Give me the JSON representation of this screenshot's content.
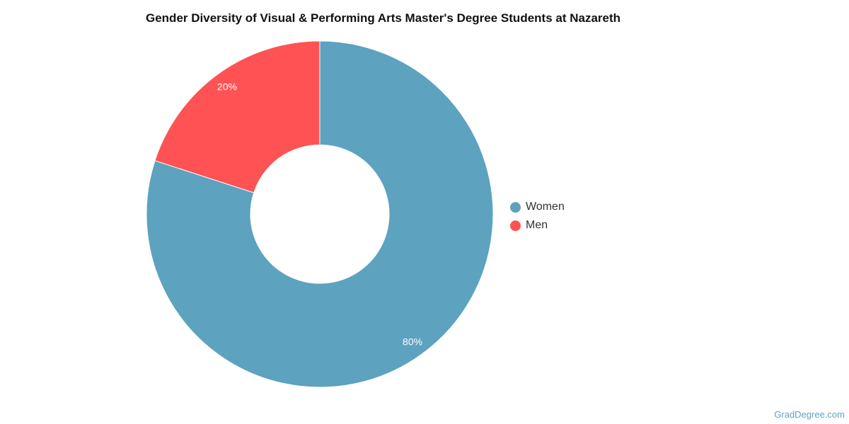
{
  "chart_data": {
    "type": "pie",
    "title": "Gender Diversity of Visual & Performing Arts Master's Degree Students at Nazareth",
    "categories": [
      "Women",
      "Men"
    ],
    "values": [
      80,
      20
    ],
    "data_labels": [
      "80%",
      "20%"
    ],
    "colors": [
      "#5da2bf",
      "#fe5254"
    ],
    "donut": true,
    "legend_position": "right"
  },
  "legend": {
    "items": [
      {
        "label": "Women",
        "color": "#5da2bf"
      },
      {
        "label": "Men",
        "color": "#fe5254"
      }
    ]
  },
  "watermark": "GradDegree.com"
}
